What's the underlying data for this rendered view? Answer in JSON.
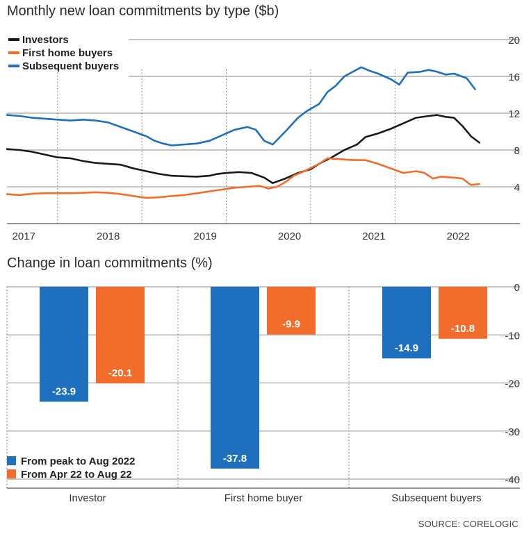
{
  "colors": {
    "investors": "#1a1a1a",
    "first_home": "#f26c2b",
    "subsequent": "#1f6fbf",
    "grid": "#8a8a8a",
    "text": "#333333"
  },
  "source": "SOURCE: CORELOGIC",
  "chart_data": [
    {
      "type": "line",
      "title": "Monthly new loan commitments by type ($b)",
      "ylim": [
        0,
        20
      ],
      "yticks": [
        4,
        8,
        12,
        16,
        20
      ],
      "x_range": [
        2016.9,
        2022.75
      ],
      "x_tick_labels": [
        "2017",
        "2018",
        "2019",
        "2020",
        "2021",
        "2022"
      ],
      "x_tick_values": [
        2017.1,
        2018.1,
        2019.25,
        2020.25,
        2021.25,
        2022.25
      ],
      "year_dividers": [
        2017.5,
        2018.5,
        2019.5,
        2020.5,
        2021.5
      ],
      "legend": {
        "position": "top-left",
        "entries": [
          "Investors",
          "First home buyers",
          "Subsequent buyers"
        ]
      },
      "series": [
        {
          "name": "Investors",
          "key": "investors",
          "points": [
            [
              2016.9,
              8.1
            ],
            [
              2017.05,
              8.0
            ],
            [
              2017.2,
              7.8
            ],
            [
              2017.35,
              7.5
            ],
            [
              2017.5,
              7.2
            ],
            [
              2017.65,
              7.1
            ],
            [
              2017.8,
              6.8
            ],
            [
              2017.95,
              6.6
            ],
            [
              2018.1,
              6.5
            ],
            [
              2018.25,
              6.4
            ],
            [
              2018.4,
              6.0
            ],
            [
              2018.55,
              5.7
            ],
            [
              2018.7,
              5.4
            ],
            [
              2018.85,
              5.2
            ],
            [
              2019.0,
              5.15
            ],
            [
              2019.15,
              5.1
            ],
            [
              2019.3,
              5.2
            ],
            [
              2019.4,
              5.4
            ],
            [
              2019.5,
              5.5
            ],
            [
              2019.65,
              5.6
            ],
            [
              2019.8,
              5.5
            ],
            [
              2019.95,
              5.0
            ],
            [
              2020.05,
              4.4
            ],
            [
              2020.2,
              4.9
            ],
            [
              2020.35,
              5.5
            ],
            [
              2020.5,
              5.9
            ],
            [
              2020.6,
              6.5
            ],
            [
              2020.75,
              7.2
            ],
            [
              2020.9,
              8.0
            ],
            [
              2021.05,
              8.6
            ],
            [
              2021.15,
              9.4
            ],
            [
              2021.3,
              9.8
            ],
            [
              2021.45,
              10.3
            ],
            [
              2021.6,
              10.9
            ],
            [
              2021.75,
              11.5
            ],
            [
              2021.9,
              11.7
            ],
            [
              2022.0,
              11.8
            ],
            [
              2022.1,
              11.6
            ],
            [
              2022.2,
              11.5
            ],
            [
              2022.3,
              10.6
            ],
            [
              2022.4,
              9.5
            ],
            [
              2022.5,
              8.8
            ]
          ]
        },
        {
          "name": "First home buyers",
          "key": "first_home",
          "points": [
            [
              2016.9,
              3.2
            ],
            [
              2017.05,
              3.1
            ],
            [
              2017.2,
              3.25
            ],
            [
              2017.35,
              3.3
            ],
            [
              2017.5,
              3.3
            ],
            [
              2017.65,
              3.3
            ],
            [
              2017.8,
              3.35
            ],
            [
              2017.95,
              3.4
            ],
            [
              2018.1,
              3.35
            ],
            [
              2018.25,
              3.2
            ],
            [
              2018.4,
              3.0
            ],
            [
              2018.55,
              2.8
            ],
            [
              2018.7,
              2.85
            ],
            [
              2018.85,
              3.0
            ],
            [
              2019.0,
              3.1
            ],
            [
              2019.15,
              3.3
            ],
            [
              2019.3,
              3.5
            ],
            [
              2019.45,
              3.7
            ],
            [
              2019.6,
              3.9
            ],
            [
              2019.75,
              4.0
            ],
            [
              2019.9,
              4.1
            ],
            [
              2020.0,
              3.8
            ],
            [
              2020.1,
              4.0
            ],
            [
              2020.2,
              4.5
            ],
            [
              2020.3,
              5.2
            ],
            [
              2020.45,
              5.8
            ],
            [
              2020.6,
              6.5
            ],
            [
              2020.7,
              7.1
            ],
            [
              2020.85,
              7.0
            ],
            [
              2021.0,
              6.9
            ],
            [
              2021.15,
              6.9
            ],
            [
              2021.3,
              6.5
            ],
            [
              2021.45,
              6.0
            ],
            [
              2021.6,
              5.5
            ],
            [
              2021.75,
              5.7
            ],
            [
              2021.85,
              5.5
            ],
            [
              2021.95,
              4.9
            ],
            [
              2022.05,
              5.1
            ],
            [
              2022.2,
              5.0
            ],
            [
              2022.3,
              4.9
            ],
            [
              2022.4,
              4.2
            ],
            [
              2022.5,
              4.3
            ]
          ]
        },
        {
          "name": "Subsequent buyers",
          "key": "subsequent",
          "points": [
            [
              2016.9,
              11.8
            ],
            [
              2017.05,
              11.7
            ],
            [
              2017.2,
              11.5
            ],
            [
              2017.35,
              11.4
            ],
            [
              2017.5,
              11.3
            ],
            [
              2017.65,
              11.2
            ],
            [
              2017.8,
              11.3
            ],
            [
              2017.95,
              11.2
            ],
            [
              2018.1,
              11.0
            ],
            [
              2018.25,
              10.5
            ],
            [
              2018.4,
              10.0
            ],
            [
              2018.55,
              9.5
            ],
            [
              2018.65,
              9.0
            ],
            [
              2018.75,
              8.7
            ],
            [
              2018.85,
              8.5
            ],
            [
              2019.0,
              8.6
            ],
            [
              2019.15,
              8.7
            ],
            [
              2019.3,
              9.0
            ],
            [
              2019.45,
              9.6
            ],
            [
              2019.6,
              10.2
            ],
            [
              2019.75,
              10.5
            ],
            [
              2019.85,
              10.2
            ],
            [
              2019.95,
              9.0
            ],
            [
              2020.05,
              8.6
            ],
            [
              2020.2,
              10.0
            ],
            [
              2020.35,
              11.5
            ],
            [
              2020.45,
              12.2
            ],
            [
              2020.6,
              13.0
            ],
            [
              2020.7,
              14.3
            ],
            [
              2020.8,
              15.0
            ],
            [
              2020.9,
              16.0
            ],
            [
              2021.0,
              16.5
            ],
            [
              2021.1,
              17.0
            ],
            [
              2021.2,
              16.6
            ],
            [
              2021.3,
              16.3
            ],
            [
              2021.45,
              15.7
            ],
            [
              2021.55,
              15.1
            ],
            [
              2021.65,
              16.4
            ],
            [
              2021.8,
              16.5
            ],
            [
              2021.9,
              16.7
            ],
            [
              2022.0,
              16.5
            ],
            [
              2022.1,
              16.2
            ],
            [
              2022.2,
              16.3
            ],
            [
              2022.35,
              15.8
            ],
            [
              2022.45,
              14.6
            ]
          ]
        }
      ]
    },
    {
      "type": "bar",
      "title": "Change in loan commitments (%)",
      "ylim": [
        -40,
        0
      ],
      "yticks": [
        0,
        -10,
        -20,
        -30,
        -40
      ],
      "categories": [
        "Investor",
        "First home buyer",
        "Subsequent buyers"
      ],
      "legend": {
        "position": "bottom-left",
        "entries": [
          "From peak to Aug 2022",
          "From Apr 22 to Aug 22"
        ]
      },
      "series": [
        {
          "name": "From peak to Aug 2022",
          "key": "subsequent",
          "values": [
            -23.9,
            -37.8,
            -14.9
          ],
          "labels": [
            "-23.9",
            "-37.8",
            "-14.9"
          ]
        },
        {
          "name": "From Apr 22 to Aug 22",
          "key": "first_home",
          "values": [
            -20.1,
            -9.9,
            -10.8
          ],
          "labels": [
            "-20.1",
            "-9.9",
            "-10.8"
          ]
        }
      ]
    }
  ]
}
